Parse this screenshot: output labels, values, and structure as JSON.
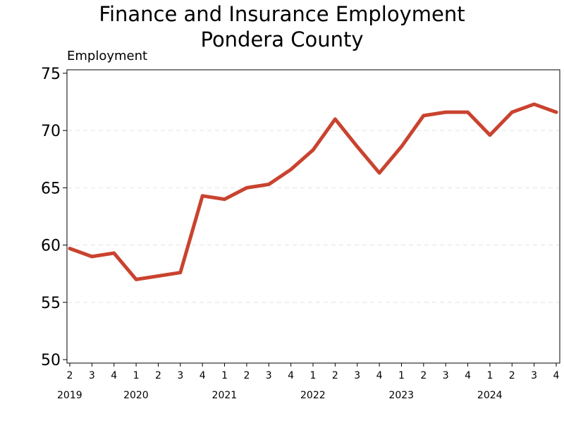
{
  "chart_data": {
    "type": "line",
    "title": "Finance and Insurance Employment",
    "subtitle": "Pondera County",
    "ylabel": "Employment",
    "xlabel": "",
    "ylim": [
      50,
      75
    ],
    "yticks": [
      50,
      55,
      60,
      65,
      70,
      75
    ],
    "grid": true,
    "color": "#c9432f",
    "quarter_labels": [
      "2",
      "3",
      "4",
      "1",
      "2",
      "3",
      "4",
      "1",
      "2",
      "3",
      "4",
      "1",
      "2",
      "3",
      "4",
      "1",
      "2",
      "3",
      "4",
      "1",
      "2",
      "3",
      "4"
    ],
    "year_labels": [
      {
        "year": "2019",
        "start_index": 0
      },
      {
        "year": "2020",
        "start_index": 3
      },
      {
        "year": "2021",
        "start_index": 7
      },
      {
        "year": "2022",
        "start_index": 11
      },
      {
        "year": "2023",
        "start_index": 15
      },
      {
        "year": "2024",
        "start_index": 19
      }
    ],
    "series": [
      {
        "values": [
          59.7,
          59.0,
          59.3,
          57.0,
          57.3,
          57.6,
          64.3,
          64.0,
          65.0,
          65.3,
          66.6,
          68.3,
          71.0,
          68.6,
          66.3,
          68.6,
          71.3,
          71.6,
          71.6,
          69.6,
          71.6,
          72.3,
          71.6
        ]
      }
    ]
  }
}
